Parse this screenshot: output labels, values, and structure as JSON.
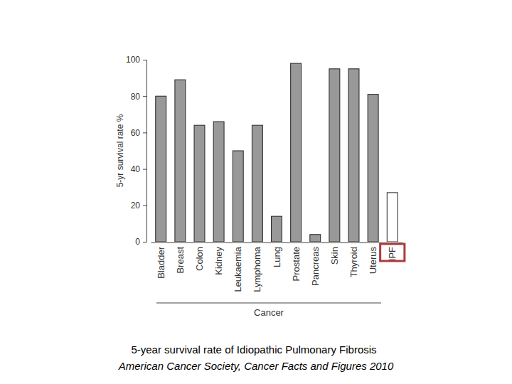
{
  "chart_data": {
    "type": "bar",
    "title": "5-year survival rate of Idiopathic Pulmonary Fibrosis",
    "subtitle": "American Cancer Society, Cancer Facts and Figures 2010",
    "x_label": "Cancer",
    "y_label": "5-yr survival rate %",
    "categories": [
      "Bladder",
      "Breast",
      "Colon",
      "Kidney",
      "Leukaemia",
      "Lymphoma",
      "Lung",
      "Prostate",
      "Pancreas",
      "Skin",
      "Thyroid",
      "Uterus",
      "IPF"
    ],
    "values": [
      80,
      89,
      64,
      66,
      50,
      64,
      14,
      98,
      4,
      95,
      95,
      81,
      27
    ],
    "colors": [
      "#999999",
      "#999999",
      "#999999",
      "#999999",
      "#999999",
      "#999999",
      "#999999",
      "#999999",
      "#999999",
      "#999999",
      "#999999",
      "#999999",
      "#ffffff"
    ],
    "ylim": [
      0,
      100
    ],
    "yticks": [
      0,
      20,
      40,
      60,
      80,
      100
    ],
    "grid": false
  }
}
